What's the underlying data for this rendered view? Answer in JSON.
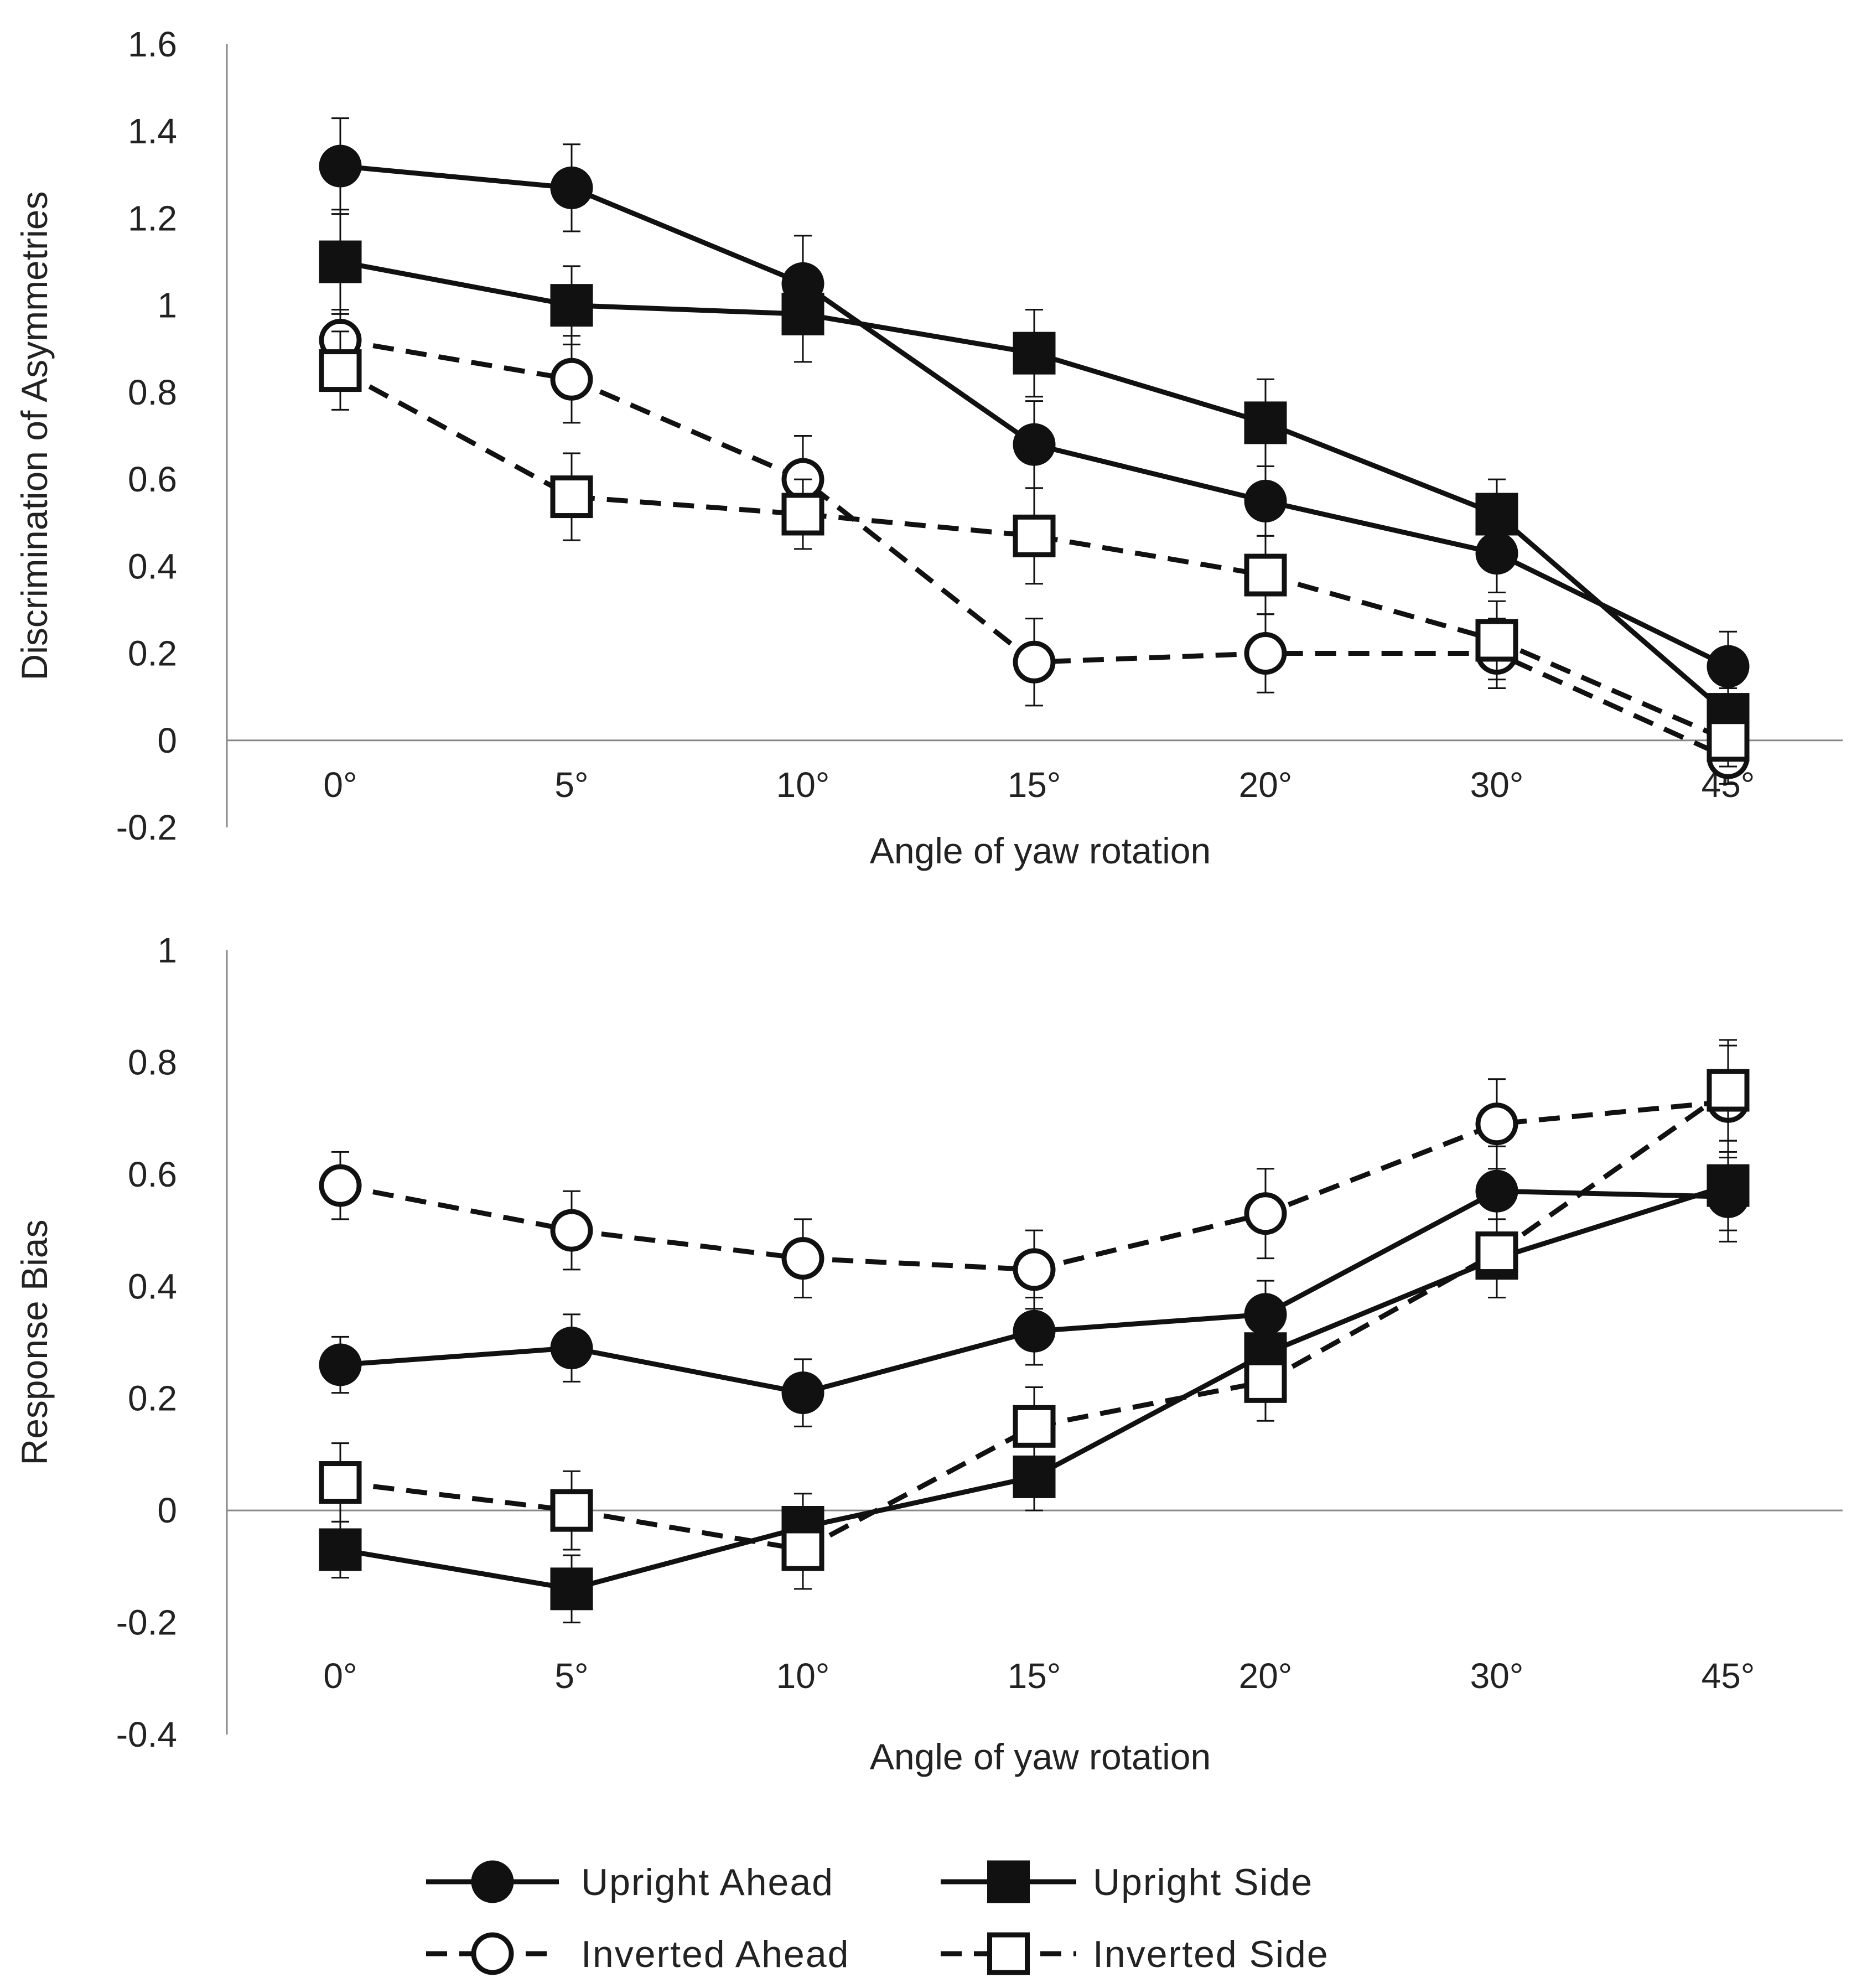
{
  "chart_data": [
    {
      "type": "line",
      "ylabel": "Discrimination of Asymmetries",
      "xlabel": "Angle of yaw rotation",
      "categories": [
        "0°",
        "5°",
        "10°",
        "15°",
        "20°",
        "30°",
        "45°"
      ],
      "ylim": [
        -0.2,
        1.6
      ],
      "yticks": [
        "1.6",
        "1.4",
        "1.2",
        "1",
        "0.8",
        "0.6",
        "0.4",
        "0.2",
        "0",
        "-0.2"
      ],
      "series": [
        {
          "name": "Upright Ahead",
          "marker": "circle-filled",
          "style": "solid",
          "values": [
            1.32,
            1.27,
            1.05,
            0.68,
            0.55,
            0.43,
            0.17
          ],
          "errors": [
            0.11,
            0.1,
            0.11,
            0.1,
            0.08,
            0.09,
            0.08
          ]
        },
        {
          "name": "Upright Side",
          "marker": "square-filled",
          "style": "solid",
          "values": [
            1.1,
            1.0,
            0.98,
            0.89,
            0.73,
            0.52,
            0.06
          ],
          "errors": [
            0.12,
            0.09,
            0.11,
            0.1,
            0.1,
            0.08,
            0.06
          ]
        },
        {
          "name": "Inverted Ahead",
          "marker": "circle-open",
          "style": "dashed",
          "values": [
            0.92,
            0.83,
            0.6,
            0.18,
            0.2,
            0.2,
            -0.04
          ],
          "errors": [
            0.07,
            0.1,
            0.1,
            0.1,
            0.09,
            0.08,
            0.06
          ]
        },
        {
          "name": "Inverted Side",
          "marker": "square-open",
          "style": "dashed",
          "values": [
            0.85,
            0.56,
            0.52,
            0.47,
            0.38,
            0.23,
            0.0
          ],
          "errors": [
            0.09,
            0.1,
            0.08,
            0.11,
            0.09,
            0.09,
            0.06
          ]
        }
      ]
    },
    {
      "type": "line",
      "ylabel": "Response Bias",
      "xlabel": "Angle of yaw rotation",
      "categories": [
        "0°",
        "5°",
        "10°",
        "15°",
        "20°",
        "30°",
        "45°"
      ],
      "ylim": [
        -0.4,
        1.0
      ],
      "yticks": [
        "1",
        "0.8",
        "0.6",
        "0.4",
        "0.2",
        "0",
        "-0.2",
        "-0.4"
      ],
      "series": [
        {
          "name": "Upright Ahead",
          "marker": "circle-filled",
          "style": "solid",
          "values": [
            0.26,
            0.29,
            0.21,
            0.32,
            0.35,
            0.57,
            0.56
          ],
          "errors": [
            0.05,
            0.06,
            0.06,
            0.06,
            0.06,
            0.08,
            0.08
          ]
        },
        {
          "name": "Upright Side",
          "marker": "square-filled",
          "style": "solid",
          "values": [
            -0.07,
            -0.14,
            -0.03,
            0.06,
            0.28,
            0.45,
            0.58
          ],
          "errors": [
            0.05,
            0.06,
            0.06,
            0.06,
            0.06,
            0.07,
            0.08
          ]
        },
        {
          "name": "Inverted Ahead",
          "marker": "circle-open",
          "style": "dashed",
          "values": [
            0.58,
            0.5,
            0.45,
            0.43,
            0.53,
            0.69,
            0.73
          ],
          "errors": [
            0.06,
            0.07,
            0.07,
            0.07,
            0.08,
            0.08,
            0.1
          ]
        },
        {
          "name": "Inverted Side",
          "marker": "square-open",
          "style": "dashed",
          "values": [
            0.05,
            0.0,
            -0.07,
            0.15,
            0.23,
            0.46,
            0.75
          ],
          "errors": [
            0.07,
            0.07,
            0.07,
            0.07,
            0.07,
            0.08,
            0.09
          ]
        }
      ]
    }
  ],
  "legend": [
    {
      "label": "Upright Ahead",
      "marker": "circle-filled",
      "style": "solid"
    },
    {
      "label": "Upright Side",
      "marker": "square-filled",
      "style": "solid"
    },
    {
      "label": "Inverted Ahead",
      "marker": "circle-open",
      "style": "dashed"
    },
    {
      "label": "Inverted Side",
      "marker": "square-open",
      "style": "dashed"
    }
  ],
  "colors": {
    "line": "#111111",
    "axis": "#888888",
    "text": "#222222",
    "background": "#ffffff"
  }
}
